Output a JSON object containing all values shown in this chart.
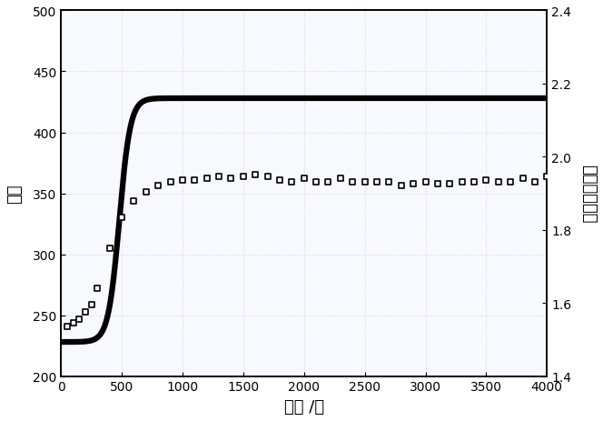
{
  "title": "",
  "xlabel": "时间 /秒",
  "ylabel_left": "链长",
  "ylabel_right": "链长分布系数",
  "xlim": [
    0,
    4000
  ],
  "ylim_left": [
    200,
    500
  ],
  "ylim_right": [
    1.4,
    2.4
  ],
  "xticks": [
    0,
    500,
    1000,
    1500,
    2000,
    2500,
    3000,
    3500,
    4000
  ],
  "yticks_left": [
    200,
    250,
    300,
    350,
    400,
    450,
    500
  ],
  "yticks_right": [
    1.4,
    1.6,
    1.8,
    2.0,
    2.2,
    2.4
  ],
  "line_color": "#000000",
  "scatter_color": "#000000",
  "bg_color": "#ffffff",
  "line_width": 4.5,
  "sigmoid_k": 0.022,
  "sigmoid_t0": 480,
  "line_y_start": 228,
  "line_y_plateau": 428,
  "font_size_label": 13,
  "font_size_tick": 10,
  "scatter_x": [
    50,
    100,
    150,
    200,
    250,
    300,
    400,
    500,
    600,
    700,
    800,
    900,
    1000,
    1100,
    1200,
    1300,
    1400,
    1500,
    1600,
    1700,
    1800,
    1900,
    2000,
    2100,
    2200,
    2300,
    2400,
    2500,
    2600,
    2700,
    2800,
    2900,
    3000,
    3100,
    3200,
    3300,
    3400,
    3500,
    3600,
    3700,
    3800,
    3900,
    4000
  ],
  "scatter_y": [
    1.535,
    1.545,
    1.555,
    1.575,
    1.595,
    1.64,
    1.75,
    1.835,
    1.88,
    1.905,
    1.92,
    1.93,
    1.935,
    1.935,
    1.94,
    1.945,
    1.94,
    1.945,
    1.95,
    1.945,
    1.935,
    1.93,
    1.94,
    1.93,
    1.93,
    1.94,
    1.93,
    1.93,
    1.93,
    1.93,
    1.92,
    1.925,
    1.93,
    1.925,
    1.925,
    1.93,
    1.93,
    1.935,
    1.93,
    1.93,
    1.94,
    1.93,
    1.945
  ]
}
